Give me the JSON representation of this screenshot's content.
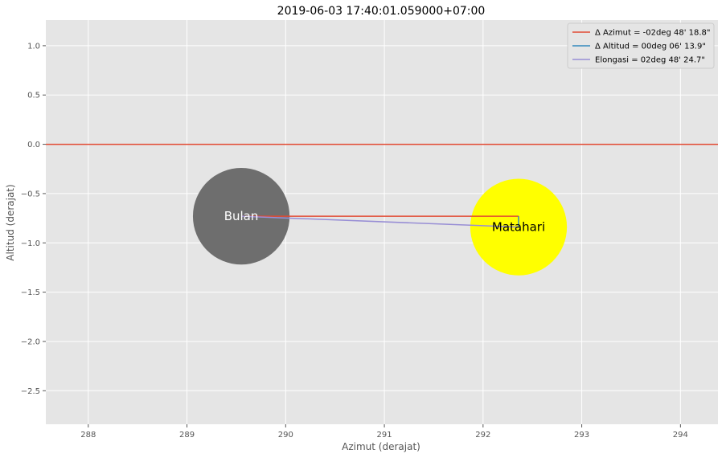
{
  "chart_data": {
    "type": "scatter",
    "title": "2019-06-03 17:40:01.059000+07:00",
    "xlabel": "Azimut (derajat)",
    "ylabel": "Altitud (derajat)",
    "xlim": [
      287.57,
      294.38
    ],
    "ylim": [
      -2.84,
      1.26
    ],
    "x_ticks": [
      288,
      289,
      290,
      291,
      292,
      293,
      294
    ],
    "y_ticks": [
      1.0,
      0.5,
      0.0,
      -0.5,
      -1.0,
      -1.5,
      -2.0,
      -2.5
    ],
    "x_tick_labels": [
      "288",
      "289",
      "290",
      "291",
      "292",
      "293",
      "294"
    ],
    "y_tick_labels": [
      "1.0",
      "0.5",
      "0.0",
      "−0.5",
      "−1.0",
      "−1.5",
      "−2.0",
      "−2.5"
    ],
    "grid": true,
    "legend_position": "top-right",
    "horizon": {
      "y": 0.0,
      "color": "#e24a33"
    },
    "bodies": [
      {
        "label": "Bulan",
        "x": 289.55,
        "y": -0.73,
        "radius_deg": 0.49,
        "color": "#6e6e6e",
        "label_color": "#ffffff"
      },
      {
        "label": "Matahari",
        "x": 292.36,
        "y": -0.84,
        "radius_deg": 0.49,
        "color": "#ffff00",
        "label_color": "#000000"
      }
    ],
    "series": [
      {
        "name": "Δ Azimut = -02deg 48' 18.8\"",
        "color": "#e24a33",
        "x": [
          289.55,
          292.36
        ],
        "y": [
          -0.73,
          -0.73
        ]
      },
      {
        "name": "Δ Altitud = 00deg 06' 13.9\"",
        "color": "#348abd",
        "x": [
          292.36,
          292.36
        ],
        "y": [
          -0.73,
          -0.84
        ]
      },
      {
        "name": "Elongasi = 02deg 48' 24.7\"",
        "color": "#988ed5",
        "x": [
          289.55,
          292.36
        ],
        "y": [
          -0.73,
          -0.84
        ]
      }
    ]
  }
}
